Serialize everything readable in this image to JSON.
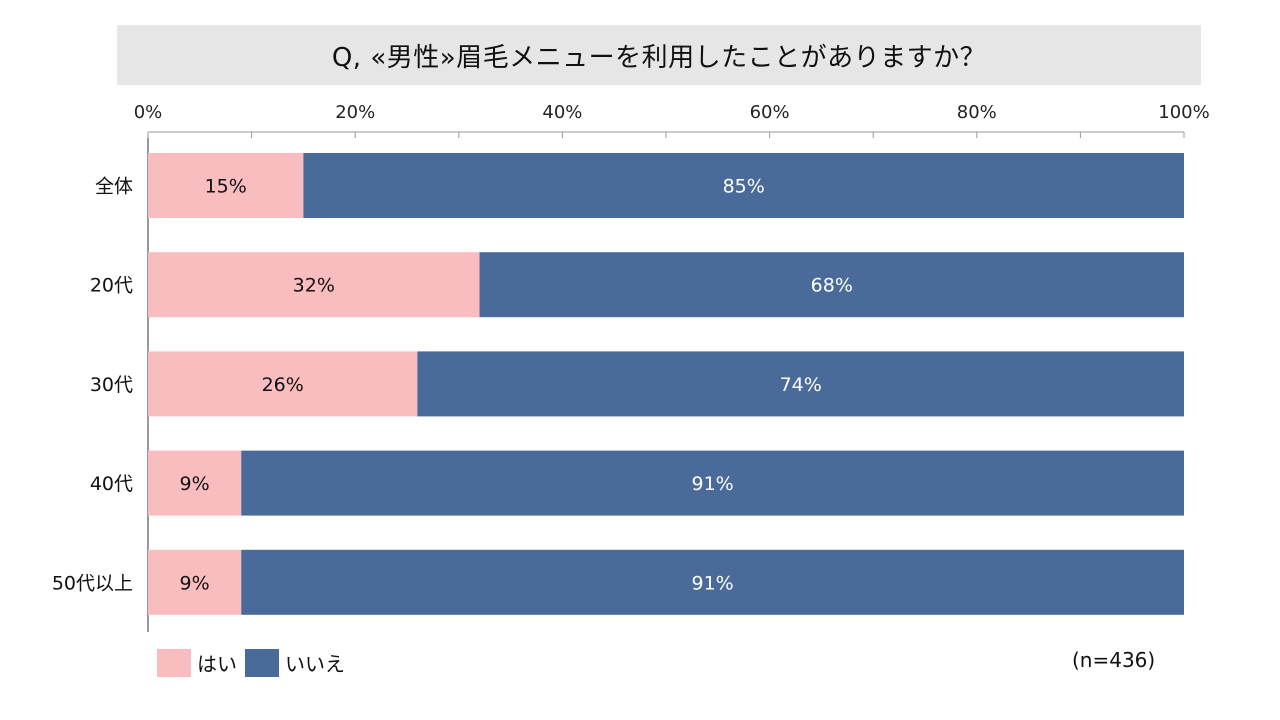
{
  "title": "Q, «男性»眉毛メニューを利用したことがありますか？",
  "note": "(n=436)",
  "colors": {
    "yes": "#f9bdbf",
    "no": "#4a6a99"
  },
  "chart_data": {
    "type": "bar",
    "orientation": "horizontal",
    "stacked": true,
    "percent": true,
    "categories": [
      "全体",
      "20代",
      "30代",
      "40代",
      "50代以上"
    ],
    "series": [
      {
        "name": "はい",
        "values": [
          15,
          32,
          26,
          9,
          9
        ]
      },
      {
        "name": "いいえ",
        "values": [
          85,
          68,
          74,
          91,
          91
        ]
      }
    ],
    "xlim": [
      0,
      100
    ],
    "xticks": [
      "0%",
      "20%",
      "40%",
      "60%",
      "80%",
      "100%"
    ],
    "legend_position": "bottom-left",
    "grid": false
  }
}
